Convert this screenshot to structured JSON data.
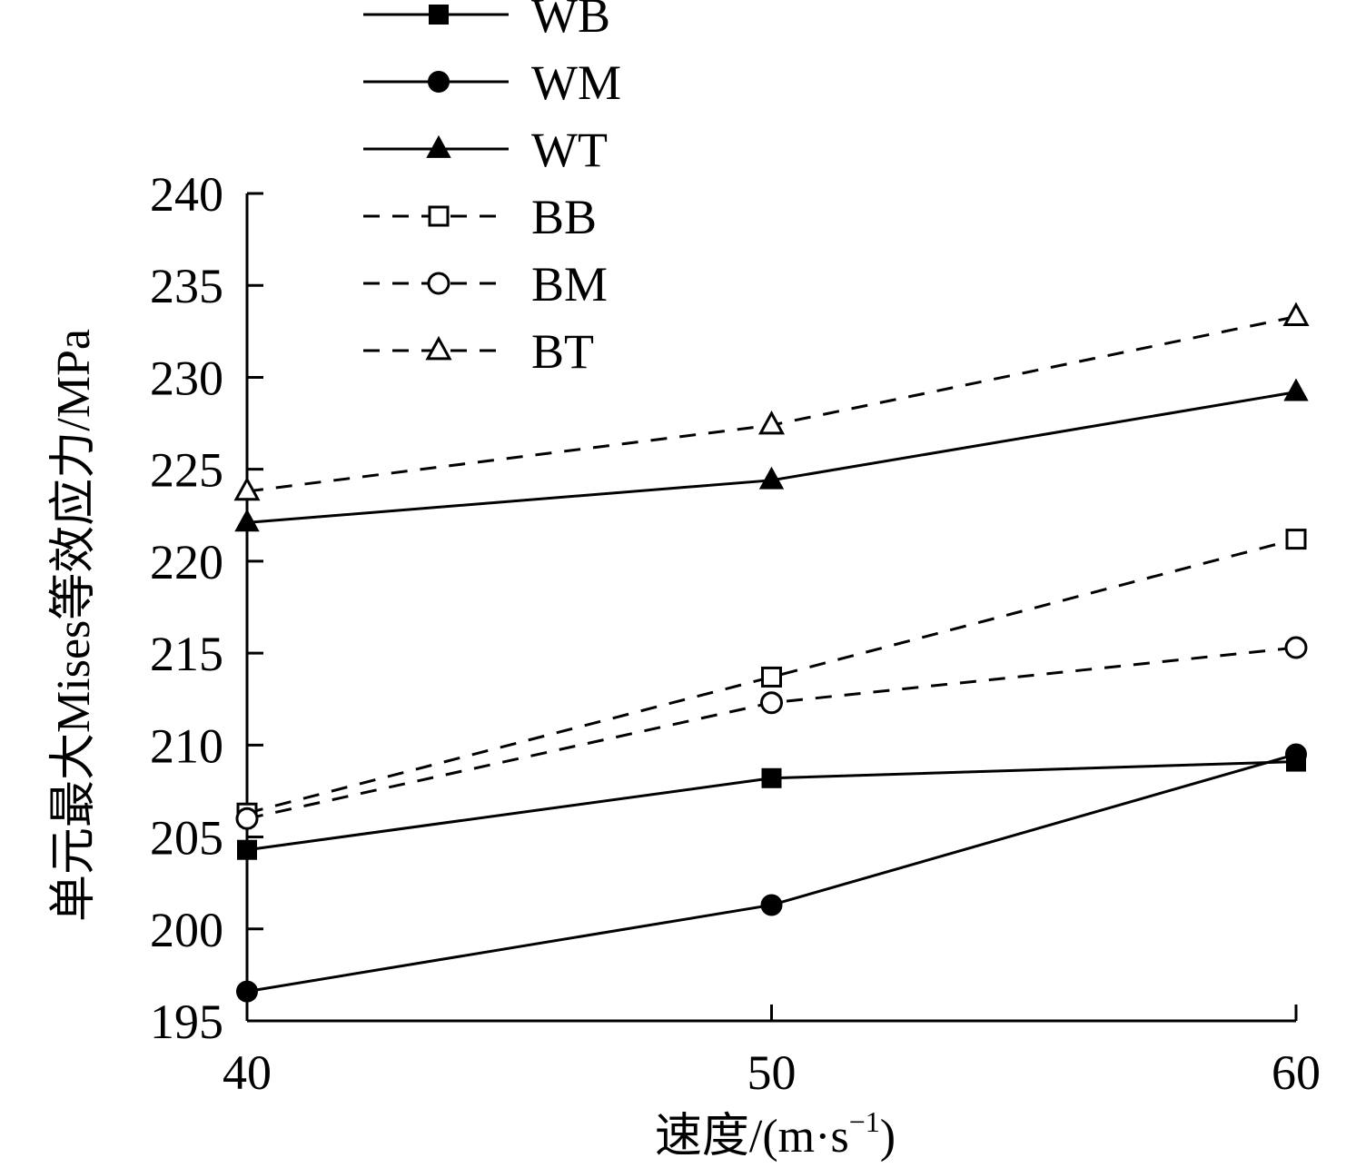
{
  "chart_data": {
    "type": "line",
    "xlabel_prefix": "速度/(m·s",
    "xlabel_sup": "−1",
    "xlabel_suffix": ")",
    "ylabel": "单元最大Mises等效应力/MPa",
    "x": [
      40,
      50,
      60
    ],
    "xticks": [
      "40",
      "50",
      "60"
    ],
    "xlim": [
      40,
      60
    ],
    "ylim": [
      195,
      240
    ],
    "yticks": [
      "195",
      "200",
      "205",
      "210",
      "215",
      "220",
      "225",
      "230",
      "235",
      "240"
    ],
    "grid": false,
    "legend_position": "top-left",
    "series": [
      {
        "name": "WB",
        "values": [
          204.3,
          208.2,
          209.1
        ],
        "marker": "square",
        "filled": true,
        "dash": false
      },
      {
        "name": "WM",
        "values": [
          196.6,
          201.3,
          209.5
        ],
        "marker": "circle",
        "filled": true,
        "dash": false
      },
      {
        "name": "WT",
        "values": [
          222.1,
          224.4,
          229.2
        ],
        "marker": "triangle",
        "filled": true,
        "dash": false
      },
      {
        "name": "BB",
        "values": [
          206.3,
          213.7,
          221.2
        ],
        "marker": "square",
        "filled": false,
        "dash": true
      },
      {
        "name": "BM",
        "values": [
          206.0,
          212.3,
          215.3
        ],
        "marker": "circle",
        "filled": false,
        "dash": true
      },
      {
        "name": "BT",
        "values": [
          223.8,
          227.4,
          233.3
        ],
        "marker": "triangle",
        "filled": false,
        "dash": true
      }
    ],
    "colors": {
      "line": "#000000",
      "background": "#ffffff"
    }
  }
}
